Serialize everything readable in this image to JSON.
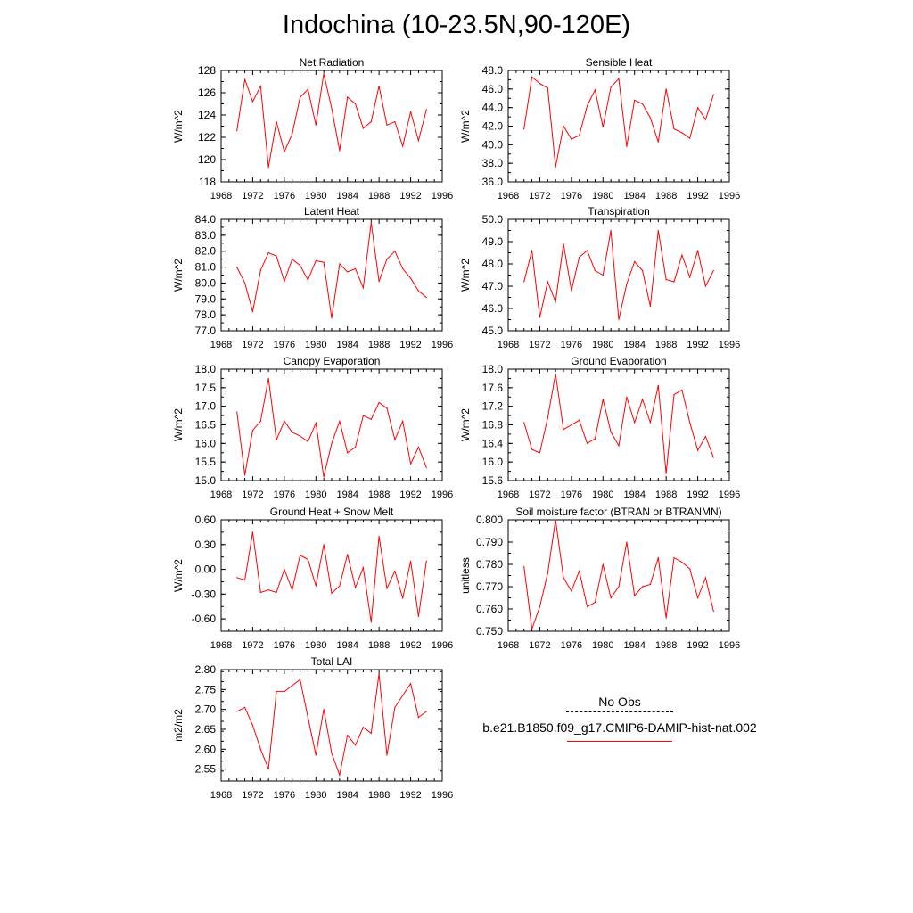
{
  "title": "Indochina (10-23.5N,90-120E)",
  "colors": {
    "model_line": "#ff0000",
    "axis": "#000000"
  },
  "legend": {
    "obs_label": "No Obs",
    "model_label": "b.e21.B1850.f09_g17.CMIP6-DAMIP-hist-nat.002"
  },
  "chart_data": [
    {
      "type": "line",
      "title": "Net Radiation",
      "ylabel": "W/m^2",
      "xlim": [
        1968,
        1996
      ],
      "ylim": [
        118,
        128
      ],
      "xticks": [
        1968,
        1972,
        1976,
        1980,
        1984,
        1988,
        1992,
        1996
      ],
      "yticks": [
        "118",
        "120",
        "122",
        "124",
        "126",
        "128"
      ],
      "x": [
        1970,
        1971,
        1972,
        1973,
        1974,
        1975,
        1976,
        1977,
        1978,
        1979,
        1980,
        1981,
        1982,
        1983,
        1984,
        1985,
        1986,
        1987,
        1988,
        1989,
        1990,
        1991,
        1992,
        1993,
        1994
      ],
      "y": [
        122.6,
        127.2,
        125.2,
        126.6,
        119.3,
        123.4,
        120.7,
        122.3,
        125.6,
        126.3,
        123.1,
        127.7,
        124.6,
        120.8,
        125.6,
        125.0,
        122.8,
        123.4,
        126.6,
        123.1,
        123.4,
        121.2,
        124.3,
        121.7,
        124.5
      ],
      "series": [
        {
          "values_key": "y"
        }
      ]
    },
    {
      "type": "line",
      "title": "Sensible Heat",
      "ylabel": "W/m^2",
      "xlim": [
        1968,
        1996
      ],
      "ylim": [
        36.0,
        48.0
      ],
      "xticks": [
        1968,
        1972,
        1976,
        1980,
        1984,
        1988,
        1992,
        1996
      ],
      "yticks": [
        "36.0",
        "38.0",
        "40.0",
        "42.0",
        "44.0",
        "46.0",
        "48.0"
      ],
      "x": [
        1970,
        1971,
        1972,
        1973,
        1974,
        1975,
        1976,
        1977,
        1978,
        1979,
        1980,
        1981,
        1982,
        1983,
        1984,
        1985,
        1986,
        1987,
        1988,
        1989,
        1990,
        1991,
        1992,
        1993,
        1994
      ],
      "y": [
        41.7,
        47.3,
        46.6,
        46.1,
        37.6,
        42.0,
        40.6,
        41.0,
        44.2,
        45.9,
        41.9,
        46.2,
        47.1,
        39.8,
        44.8,
        44.4,
        42.9,
        40.3,
        46.0,
        41.7,
        41.3,
        40.7,
        44.0,
        42.7,
        45.4
      ]
    },
    {
      "type": "line",
      "title": "Latent Heat",
      "ylabel": "W/m^2",
      "xlim": [
        1968,
        1996
      ],
      "ylim": [
        77.0,
        84.0
      ],
      "xticks": [
        1968,
        1972,
        1976,
        1980,
        1984,
        1988,
        1992,
        1996
      ],
      "yticks": [
        "77.0",
        "78.0",
        "79.0",
        "80.0",
        "81.0",
        "82.0",
        "83.0",
        "84.0"
      ],
      "x": [
        1970,
        1971,
        1972,
        1973,
        1974,
        1975,
        1976,
        1977,
        1978,
        1979,
        1980,
        1981,
        1982,
        1983,
        1984,
        1985,
        1986,
        1987,
        1988,
        1989,
        1990,
        1991,
        1992,
        1993,
        1994
      ],
      "y": [
        81.0,
        80.0,
        78.2,
        80.8,
        81.9,
        81.7,
        80.1,
        81.5,
        81.1,
        80.2,
        81.4,
        81.3,
        77.8,
        81.2,
        80.7,
        80.9,
        79.7,
        83.8,
        80.1,
        81.5,
        82.0,
        80.9,
        80.3,
        79.5,
        79.1
      ]
    },
    {
      "type": "line",
      "title": "Transpiration",
      "ylabel": "W/m^2",
      "xlim": [
        1968,
        1996
      ],
      "ylim": [
        45.0,
        50.0
      ],
      "xticks": [
        1968,
        1972,
        1976,
        1980,
        1984,
        1988,
        1992,
        1996
      ],
      "yticks": [
        "45.0",
        "46.0",
        "47.0",
        "48.0",
        "49.0",
        "50.0"
      ],
      "x": [
        1970,
        1971,
        1972,
        1973,
        1974,
        1975,
        1976,
        1977,
        1978,
        1979,
        1980,
        1981,
        1982,
        1983,
        1984,
        1985,
        1986,
        1987,
        1988,
        1989,
        1990,
        1991,
        1992,
        1993,
        1994
      ],
      "y": [
        47.2,
        48.6,
        45.6,
        47.2,
        46.3,
        48.9,
        46.8,
        48.3,
        48.6,
        47.7,
        47.5,
        49.5,
        45.5,
        47.1,
        48.1,
        47.7,
        46.1,
        49.5,
        47.3,
        47.2,
        48.4,
        47.4,
        48.6,
        47.0,
        47.7
      ]
    },
    {
      "type": "line",
      "title": "Canopy Evaporation",
      "ylabel": "W/m^2",
      "xlim": [
        1968,
        1996
      ],
      "ylim": [
        15.0,
        18.0
      ],
      "xticks": [
        1968,
        1972,
        1976,
        1980,
        1984,
        1988,
        1992,
        1996
      ],
      "yticks": [
        "15.0",
        "15.5",
        "16.0",
        "16.5",
        "17.0",
        "17.5",
        "18.0"
      ],
      "x": [
        1970,
        1971,
        1972,
        1973,
        1974,
        1975,
        1976,
        1977,
        1978,
        1979,
        1980,
        1981,
        1982,
        1983,
        1984,
        1985,
        1986,
        1987,
        1988,
        1989,
        1990,
        1991,
        1992,
        1993,
        1994
      ],
      "y": [
        16.85,
        15.15,
        16.35,
        16.6,
        17.75,
        16.1,
        16.6,
        16.3,
        16.2,
        16.05,
        16.55,
        15.1,
        16.0,
        16.6,
        15.75,
        15.9,
        16.75,
        16.65,
        17.1,
        16.95,
        16.1,
        16.6,
        15.45,
        15.9,
        15.35
      ]
    },
    {
      "type": "line",
      "title": "Ground Evaporation",
      "ylabel": "W/m^2",
      "xlim": [
        1968,
        1996
      ],
      "ylim": [
        15.6,
        18.0
      ],
      "xticks": [
        1968,
        1972,
        1976,
        1980,
        1984,
        1988,
        1992,
        1996
      ],
      "yticks": [
        "15.6",
        "16.0",
        "16.4",
        "16.8",
        "17.2",
        "17.6",
        "18.0"
      ],
      "x": [
        1970,
        1971,
        1972,
        1973,
        1974,
        1975,
        1976,
        1977,
        1978,
        1979,
        1980,
        1981,
        1982,
        1983,
        1984,
        1985,
        1986,
        1987,
        1988,
        1989,
        1990,
        1991,
        1992,
        1993,
        1994
      ],
      "y": [
        16.85,
        16.27,
        16.2,
        16.95,
        17.9,
        16.7,
        16.8,
        16.9,
        16.4,
        16.5,
        17.35,
        16.65,
        16.35,
        17.4,
        16.85,
        17.35,
        16.85,
        17.65,
        15.75,
        17.45,
        17.55,
        16.85,
        16.25,
        16.55,
        16.1
      ]
    },
    {
      "type": "line",
      "title": "Ground Heat + Snow Melt",
      "ylabel": "W/m^2",
      "xlim": [
        1968,
        1996
      ],
      "ylim": [
        -0.75,
        0.6
      ],
      "xticks": [
        1968,
        1972,
        1976,
        1980,
        1984,
        1988,
        1992,
        1996
      ],
      "yticks": [
        "-0.60",
        "-0.30",
        "0.00",
        "0.30",
        "0.60"
      ],
      "x": [
        1970,
        1971,
        1972,
        1973,
        1974,
        1975,
        1976,
        1977,
        1978,
        1979,
        1980,
        1981,
        1982,
        1983,
        1984,
        1985,
        1986,
        1987,
        1988,
        1989,
        1990,
        1991,
        1992,
        1993,
        1994
      ],
      "y": [
        -0.1,
        -0.13,
        0.45,
        -0.28,
        -0.25,
        -0.28,
        0.0,
        -0.25,
        0.17,
        0.12,
        -0.2,
        0.3,
        -0.29,
        -0.2,
        0.18,
        -0.22,
        0.02,
        -0.64,
        0.4,
        -0.23,
        -0.02,
        -0.35,
        0.1,
        -0.57,
        0.1
      ]
    },
    {
      "type": "line",
      "title": "Soil moisture factor (BTRAN or BTRANMN)",
      "ylabel": "unitless",
      "xlim": [
        1968,
        1996
      ],
      "ylim": [
        0.75,
        0.8
      ],
      "xticks": [
        1968,
        1972,
        1976,
        1980,
        1984,
        1988,
        1992,
        1996
      ],
      "yticks": [
        "0.750",
        "0.760",
        "0.770",
        "0.780",
        "0.790",
        "0.800"
      ],
      "x": [
        1970,
        1971,
        1972,
        1973,
        1974,
        1975,
        1976,
        1977,
        1978,
        1979,
        1980,
        1981,
        1982,
        1983,
        1984,
        1985,
        1986,
        1987,
        1988,
        1989,
        1990,
        1991,
        1992,
        1993,
        1994
      ],
      "y": [
        0.779,
        0.751,
        0.761,
        0.776,
        0.8,
        0.774,
        0.768,
        0.777,
        0.761,
        0.763,
        0.78,
        0.765,
        0.77,
        0.79,
        0.766,
        0.77,
        0.771,
        0.783,
        0.756,
        0.783,
        0.781,
        0.778,
        0.765,
        0.774,
        0.759
      ]
    },
    {
      "type": "line",
      "title": "Total LAI",
      "ylabel": "m2/m2",
      "xlim": [
        1968,
        1996
      ],
      "ylim": [
        2.52,
        2.8
      ],
      "xticks": [
        1968,
        1972,
        1976,
        1980,
        1984,
        1988,
        1992,
        1996
      ],
      "yticks": [
        "2.55",
        "2.60",
        "2.65",
        "2.70",
        "2.75",
        "2.80"
      ],
      "x": [
        1970,
        1971,
        1972,
        1973,
        1974,
        1975,
        1976,
        1977,
        1978,
        1979,
        1980,
        1981,
        1982,
        1983,
        1984,
        1985,
        1986,
        1987,
        1988,
        1989,
        1990,
        1991,
        1992,
        1993,
        1994
      ],
      "y": [
        2.695,
        2.705,
        2.66,
        2.6,
        2.55,
        2.745,
        2.745,
        2.76,
        2.775,
        2.68,
        2.585,
        2.7,
        2.59,
        2.535,
        2.635,
        2.61,
        2.655,
        2.64,
        2.79,
        2.585,
        2.705,
        2.735,
        2.765,
        2.68,
        2.695
      ]
    }
  ]
}
